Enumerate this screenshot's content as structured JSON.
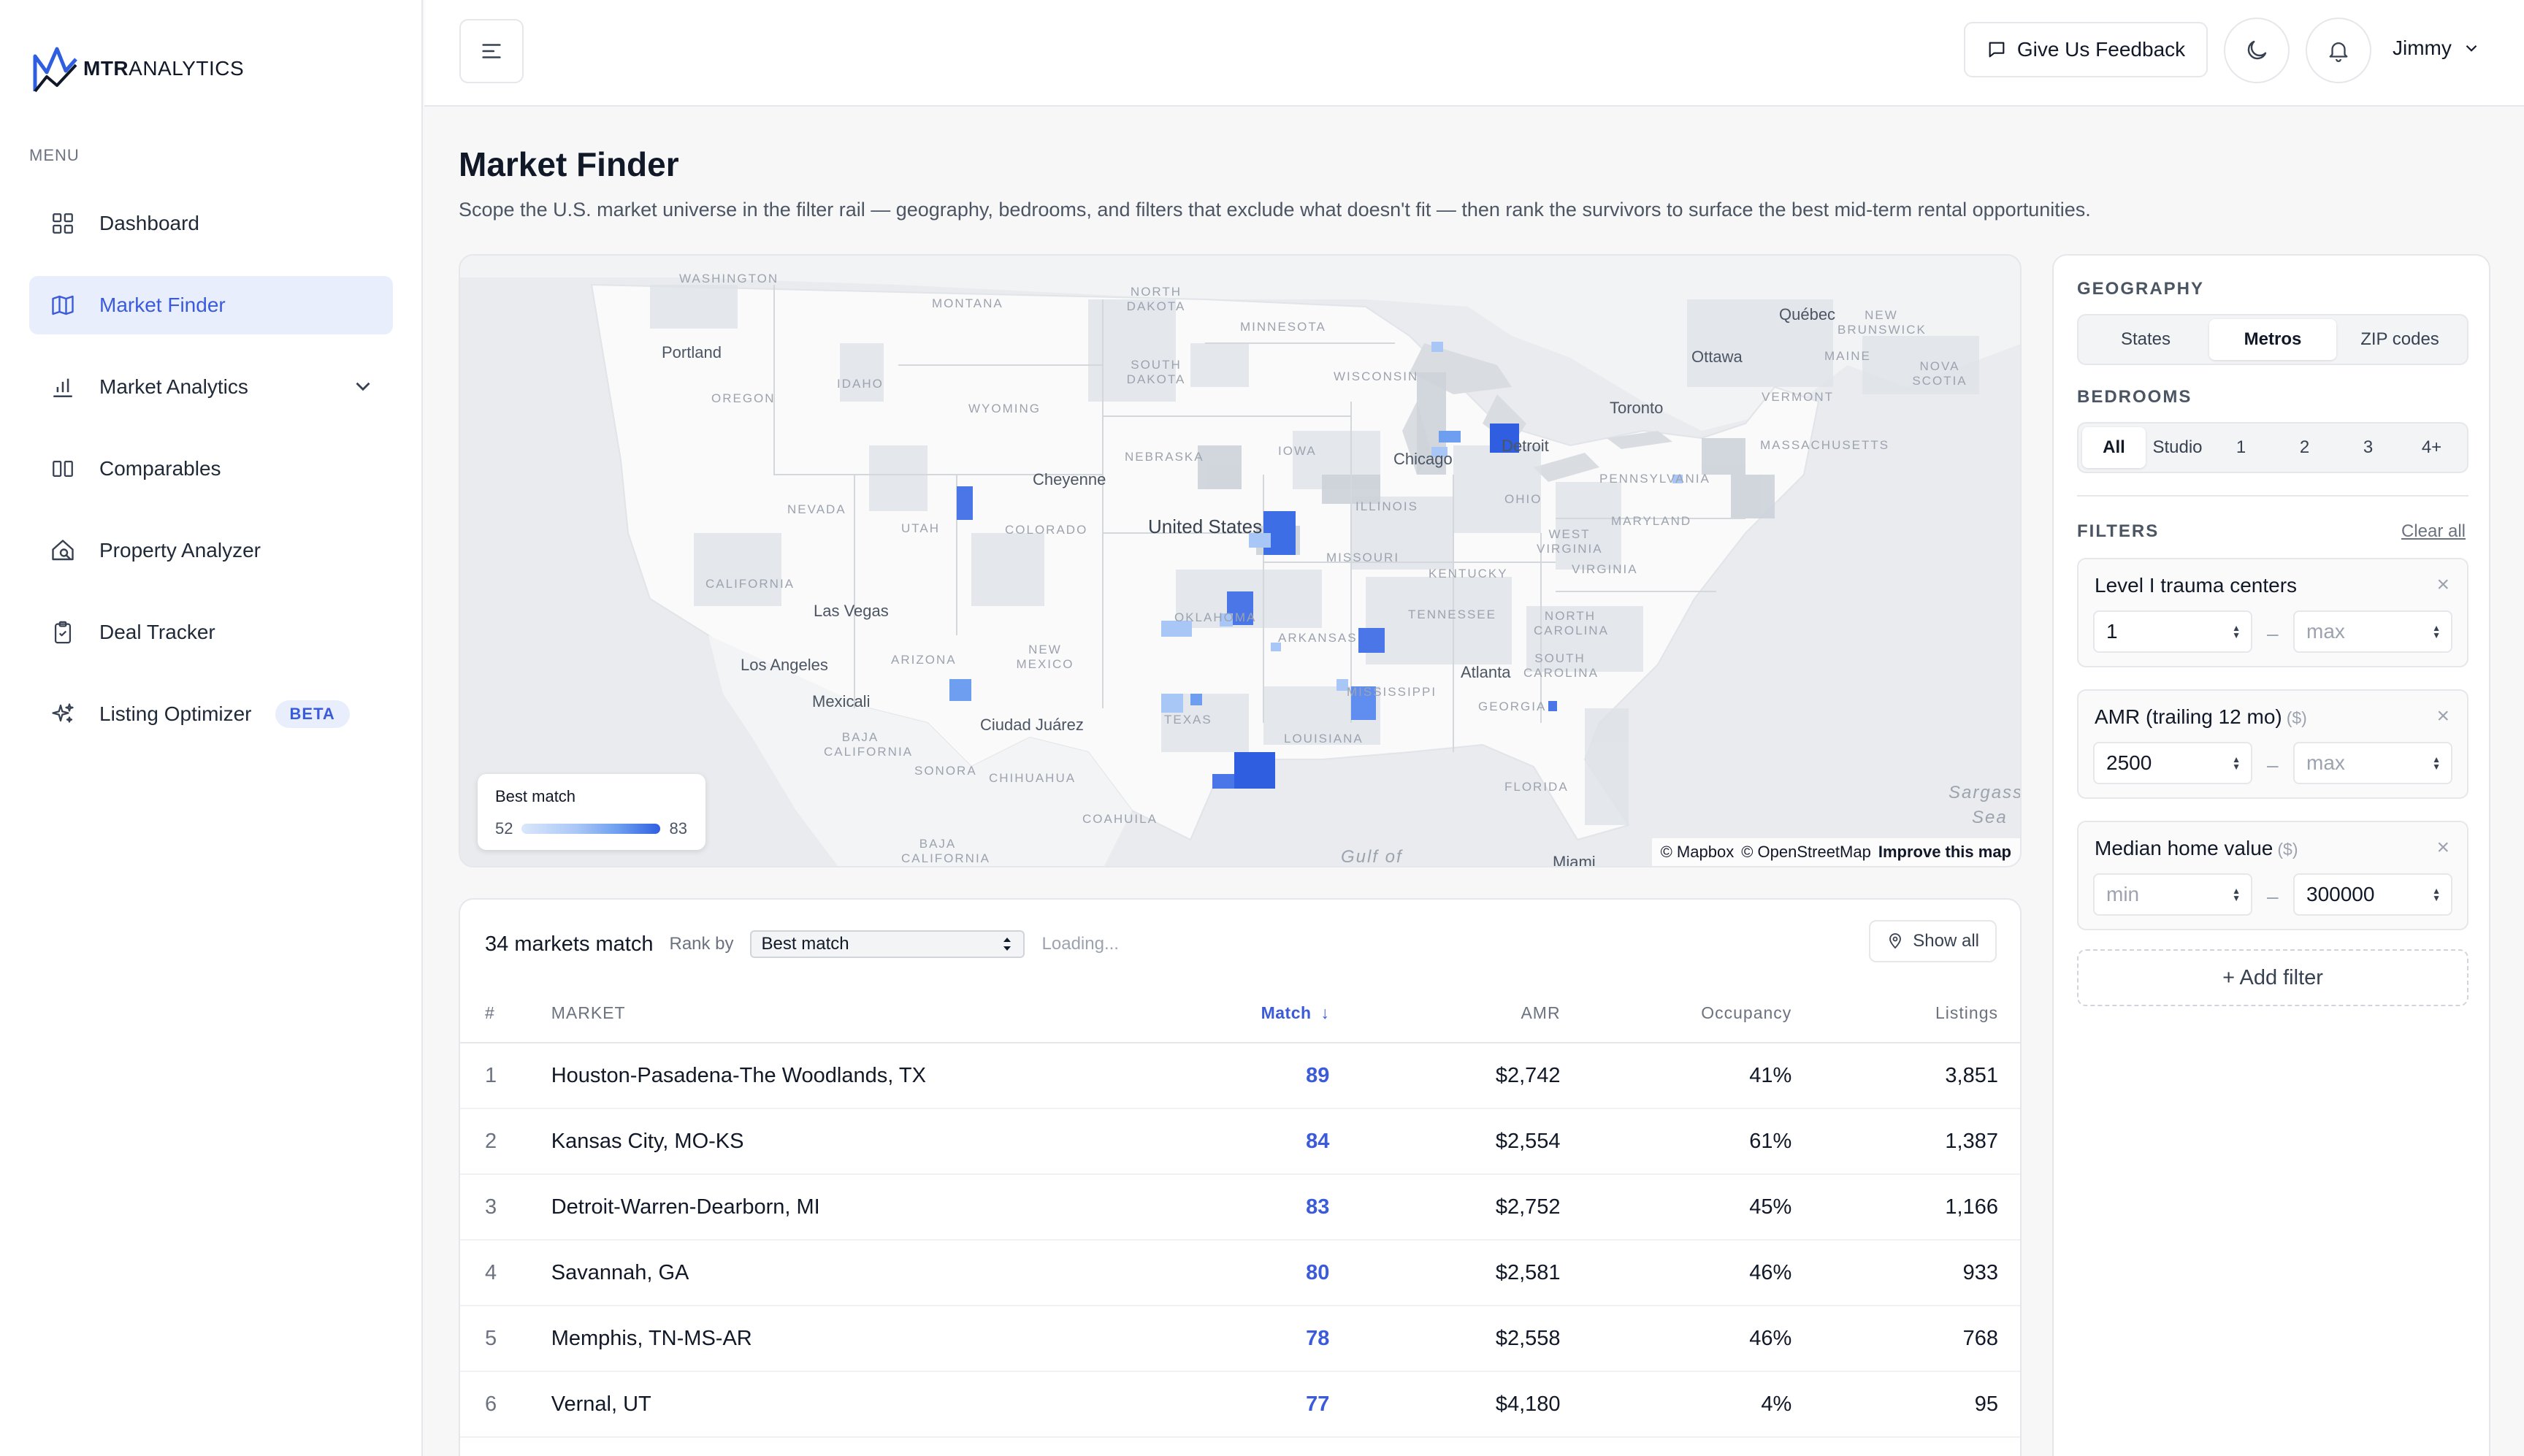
{
  "brand": {
    "logo_bold": "MTR",
    "logo_rest": "ANALYTICS"
  },
  "sidebar": {
    "menu_label": "MENU",
    "items": [
      {
        "label": "Dashboard",
        "icon": "grid-icon"
      },
      {
        "label": "Market Finder",
        "icon": "map-icon",
        "active": true
      },
      {
        "label": "Market Analytics",
        "icon": "bar-chart-icon",
        "expandable": true
      },
      {
        "label": "Comparables",
        "icon": "columns-icon"
      },
      {
        "label": "Property Analyzer",
        "icon": "house-search-icon"
      },
      {
        "label": "Deal Tracker",
        "icon": "clipboard-icon"
      },
      {
        "label": "Listing Optimizer",
        "icon": "sparkles-icon",
        "badge": "BETA"
      }
    ]
  },
  "topbar": {
    "feedback_label": "Give Us Feedback",
    "user_name": "Jimmy"
  },
  "page": {
    "title": "Market Finder",
    "description": "Scope the U.S. market universe in the filter rail — geography, bedrooms, and filters that exclude what doesn't fit — then rank the survivors to surface the best mid-term rental opportunities."
  },
  "map": {
    "legend_title": "Best match",
    "legend_min": "52",
    "legend_max": "83",
    "attribution_1": "© Mapbox",
    "attribution_2": "© OpenStreetMap",
    "attribution_link": "Improve this map",
    "labels": {
      "washington": "WASHINGTON",
      "montana": "MONTANA",
      "north_dakota": "NORTH DAKOTA",
      "minnesota": "MINNESOTA",
      "portland": "Portland",
      "idaho": "IDAHO",
      "south_dakota": "SOUTH DAKOTA",
      "wisconsin": "WISCONSIN",
      "oregon": "OREGON",
      "wyoming": "WYOMING",
      "nebraska": "NEBRASKA",
      "iowa": "IOWA",
      "nevada": "NEVADA",
      "utah": "UTAH",
      "colorado": "COLORADO",
      "united_states": "United States",
      "illinois": "ILLINOIS",
      "california": "CALIFORNIA",
      "missouri": "MISSOURI",
      "kentucky": "KENTUCKY",
      "las_vegas": "Las Vegas",
      "oklahoma": "OKLAHOMA",
      "tennessee": "TENNESSEE",
      "arizona": "ARIZONA",
      "new_mexico": "NEW MEXICO",
      "arkansas": "ARKANSAS",
      "los_angeles": "Los Angeles",
      "mexicali": "Mexicali",
      "texas": "TEXAS",
      "mississippi": "MISSISSIPPI",
      "ciudad_juarez": "Ciudad Juárez",
      "baja_california": "BAJA CALIFORNIA",
      "sonora": "SONORA",
      "chihuahua": "CHIHUAHUA",
      "louisiana": "LOUISIANA",
      "coahuila": "COAHUILA",
      "baja_california_sur": "BAJA CALIFORNIA SUR",
      "cheyenne": "Cheyenne",
      "chicago": "Chicago",
      "detroit": "Detroit",
      "toronto": "Toronto",
      "ottawa": "Ottawa",
      "quebec": "Québec",
      "maine": "MAINE",
      "vermont": "VERMONT",
      "massachusetts": "MASSACHUSETTS",
      "new_brunswick": "NEW BRUNSWICK",
      "nova_scotia": "NOVA SCOTIA",
      "pennsylvania": "PENNSYLVANIA",
      "ohio": "OHIO",
      "maryland": "MARYLAND",
      "west_virginia": "WEST VIRGINIA",
      "virginia": "VIRGINIA",
      "north_carolina": "NORTH CAROLINA",
      "south_carolina": "SOUTH CAROLINA",
      "atlanta": "Atlanta",
      "georgia": "GEORGIA",
      "florida": "FLORIDA",
      "miami": "Miami",
      "sargasso": "Sargasso",
      "sea": "Sea",
      "gulf_of": "Gulf of"
    }
  },
  "results": {
    "match_count": "34 markets match",
    "rank_by_label": "Rank by",
    "rank_by_value": "Best match",
    "loading": "Loading...",
    "show_all": "Show all",
    "columns": {
      "rank": "#",
      "market": "MARKET",
      "match": "Match",
      "amr": "AMR",
      "occupancy": "Occupancy",
      "listings": "Listings"
    },
    "rows": [
      {
        "rank": "1",
        "market": "Houston-Pasadena-The Woodlands, TX",
        "match": "89",
        "amr": "$2,742",
        "occupancy": "41%",
        "listings": "3,851"
      },
      {
        "rank": "2",
        "market": "Kansas City, MO-KS",
        "match": "84",
        "amr": "$2,554",
        "occupancy": "61%",
        "listings": "1,387"
      },
      {
        "rank": "3",
        "market": "Detroit-Warren-Dearborn, MI",
        "match": "83",
        "amr": "$2,752",
        "occupancy": "45%",
        "listings": "1,166"
      },
      {
        "rank": "4",
        "market": "Savannah, GA",
        "match": "80",
        "amr": "$2,581",
        "occupancy": "46%",
        "listings": "933"
      },
      {
        "rank": "5",
        "market": "Memphis, TN-MS-AR",
        "match": "78",
        "amr": "$2,558",
        "occupancy": "46%",
        "listings": "768"
      },
      {
        "rank": "6",
        "market": "Vernal, UT",
        "match": "77",
        "amr": "$4,180",
        "occupancy": "4%",
        "listings": "95"
      }
    ]
  },
  "rail": {
    "geography_label": "GEOGRAPHY",
    "geography_options": [
      "States",
      "Metros",
      "ZIP codes"
    ],
    "geography_selected": "Metros",
    "bedrooms_label": "BEDROOMS",
    "bedroom_options": [
      "All",
      "Studio",
      "1",
      "2",
      "3",
      "4+"
    ],
    "bedrooms_selected": "All",
    "filters_label": "FILTERS",
    "clear_all": "Clear all",
    "filters": [
      {
        "title": "Level I trauma centers",
        "unit": "",
        "min": "1",
        "max": "",
        "min_placeholder": "min",
        "max_placeholder": "max"
      },
      {
        "title": "AMR (trailing 12 mo)",
        "unit": "($)",
        "min": "2500",
        "max": "",
        "min_placeholder": "min",
        "max_placeholder": "max"
      },
      {
        "title": "Median home value",
        "unit": "($)",
        "min": "",
        "max": "300000",
        "min_placeholder": "min",
        "max_placeholder": "max"
      }
    ],
    "add_filter": "+ Add filter"
  },
  "colors": {
    "accent": "#3b5bdb",
    "accent_bg": "#e8eefc",
    "map_strong": "#3d6ee6",
    "map_light": "#a9c7f6"
  }
}
